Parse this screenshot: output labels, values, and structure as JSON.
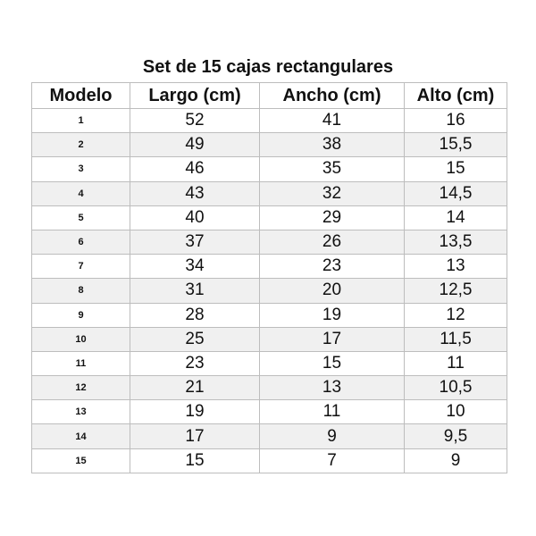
{
  "title": "Set de 15 cajas rectangulares",
  "headers": [
    "Modelo",
    "Largo (cm)",
    "Ancho (cm)",
    "Alto (cm)"
  ],
  "rows": [
    [
      "1",
      "52",
      "41",
      "16"
    ],
    [
      "2",
      "49",
      "38",
      "15,5"
    ],
    [
      "3",
      "46",
      "35",
      "15"
    ],
    [
      "4",
      "43",
      "32",
      "14,5"
    ],
    [
      "5",
      "40",
      "29",
      "14"
    ],
    [
      "6",
      "37",
      "26",
      "13,5"
    ],
    [
      "7",
      "34",
      "23",
      "13"
    ],
    [
      "8",
      "31",
      "20",
      "12,5"
    ],
    [
      "9",
      "28",
      "19",
      "12"
    ],
    [
      "10",
      "25",
      "17",
      "11,5"
    ],
    [
      "11",
      "23",
      "15",
      "11"
    ],
    [
      "12",
      "21",
      "13",
      "10,5"
    ],
    [
      "13",
      "19",
      "11",
      "10"
    ],
    [
      "14",
      "17",
      "9",
      "9,5"
    ],
    [
      "15",
      "15",
      "7",
      "9"
    ]
  ]
}
